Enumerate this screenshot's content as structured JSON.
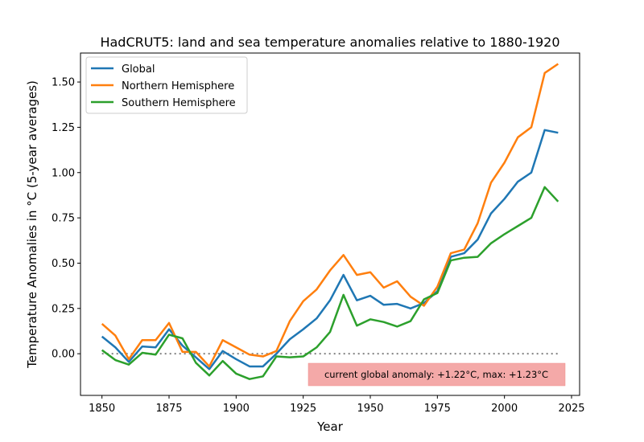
{
  "chart_data": {
    "type": "line",
    "title": "HadCRUT5: land and sea temperature anomalies relative to 1880-1920",
    "xlabel": "Year",
    "ylabel": "Temperature Anomalies in °C (5-year averages)",
    "xlim": [
      1842,
      2028
    ],
    "ylim": [
      -0.23,
      1.66
    ],
    "xticks": [
      1850,
      1875,
      1900,
      1925,
      1950,
      1975,
      2000,
      2025
    ],
    "yticks": [
      0.0,
      0.25,
      0.5,
      0.75,
      1.0,
      1.25,
      1.5
    ],
    "ytick_labels": [
      "0.00",
      "0.25",
      "0.50",
      "0.75",
      "1.00",
      "1.25",
      "1.50"
    ],
    "grid": false,
    "legend_position": "top-left",
    "zero_reference_line": true,
    "x": [
      1850,
      1855,
      1860,
      1865,
      1870,
      1875,
      1880,
      1885,
      1890,
      1895,
      1900,
      1905,
      1910,
      1915,
      1920,
      1925,
      1930,
      1935,
      1940,
      1945,
      1950,
      1955,
      1960,
      1965,
      1970,
      1975,
      1980,
      1985,
      1990,
      1995,
      2000,
      2005,
      2010,
      2015,
      2020
    ],
    "series": [
      {
        "name": "Global",
        "color": "#1f77b4",
        "values": [
          0.095,
          0.035,
          -0.045,
          0.04,
          0.035,
          0.135,
          0.045,
          -0.02,
          -0.085,
          0.015,
          -0.03,
          -0.07,
          -0.07,
          0.0,
          0.08,
          0.135,
          0.195,
          0.295,
          0.435,
          0.295,
          0.32,
          0.27,
          0.275,
          0.25,
          0.28,
          0.345,
          0.535,
          0.555,
          0.63,
          0.775,
          0.855,
          0.95,
          1.0,
          1.235,
          1.22
        ]
      },
      {
        "name": "Northern Hemisphere",
        "color": "#ff7f0e",
        "values": [
          0.165,
          0.1,
          -0.03,
          0.075,
          0.075,
          0.17,
          0.01,
          0.01,
          -0.07,
          0.075,
          0.035,
          -0.005,
          -0.015,
          0.015,
          0.18,
          0.29,
          0.355,
          0.46,
          0.545,
          0.435,
          0.45,
          0.365,
          0.4,
          0.315,
          0.265,
          0.37,
          0.555,
          0.575,
          0.72,
          0.945,
          1.055,
          1.195,
          1.25,
          1.55,
          1.6
        ]
      },
      {
        "name": "Southern Hemisphere",
        "color": "#2ca02c",
        "values": [
          0.02,
          -0.035,
          -0.06,
          0.005,
          -0.005,
          0.105,
          0.085,
          -0.05,
          -0.12,
          -0.04,
          -0.11,
          -0.14,
          -0.125,
          -0.015,
          -0.02,
          -0.015,
          0.035,
          0.12,
          0.325,
          0.155,
          0.19,
          0.175,
          0.15,
          0.18,
          0.3,
          0.335,
          0.515,
          0.53,
          0.535,
          0.61,
          0.66,
          0.705,
          0.75,
          0.92,
          0.84
        ]
      }
    ],
    "annotation": {
      "text": "current global anomaly: +1.22°C, max: +1.23°C",
      "box_color": "#f4a9a8"
    }
  }
}
